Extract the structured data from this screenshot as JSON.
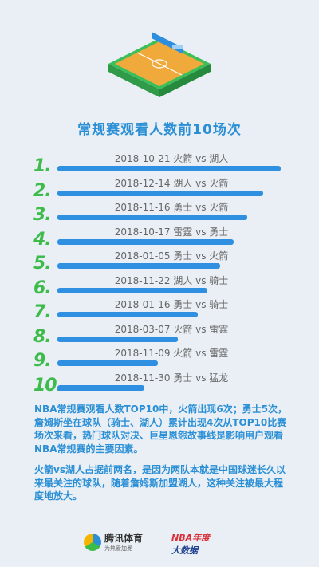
{
  "title": "常规赛观看人数前10场次",
  "chart_data": {
    "type": "bar",
    "orientation": "horizontal",
    "title": "常规赛观看人数前10场次",
    "categories": [
      "2018-10-21 火箭 vs 湖人",
      "2018-12-14 湖人 vs 火箭",
      "2018-11-16 勇士 vs 火箭",
      "2018-10-17 雷霆 vs 勇士",
      "2018-01-05 勇士 vs 火箭",
      "2018-11-22 湖人 vs 骑士",
      "2018-01-16 勇士 vs 骑士",
      "2018-03-07 火箭 vs 雷霆",
      "2018-11-09 火箭 vs 雷霆",
      "2018-11-30 勇士 vs 猛龙"
    ],
    "ranks": [
      "1.",
      "2.",
      "3.",
      "4.",
      "5.",
      "6.",
      "7.",
      "8.",
      "9.",
      "10."
    ],
    "values": [
      100,
      92,
      85,
      79,
      73,
      67,
      63,
      54,
      45,
      39
    ],
    "xlim": [
      0,
      100
    ],
    "grid": false,
    "bar_color": "#2f8fe0",
    "rank_color": "#3dbb4b"
  },
  "summary": {
    "p1": "NBA常规赛观看人数TOP10中，火箭出现6次；勇士5次，詹姆斯坐在球队（骑士、湖人）累计出现4次从TOP10比赛场次来看，热门球队对决、巨星恩怨故事线是影响用户观看NBA常规赛的主要因素。",
    "p2": "火箭vs湖人占据前两名，是因为两队本就是中国球迷长久以来最关注的球队，随着詹姆斯加盟湖人，这种关注被最大程度地放大。"
  },
  "footer": {
    "left_name": "腾讯体育",
    "left_slogan": "为热爱加冕",
    "right_line1": "NBA年度",
    "right_line2": "大数据"
  }
}
